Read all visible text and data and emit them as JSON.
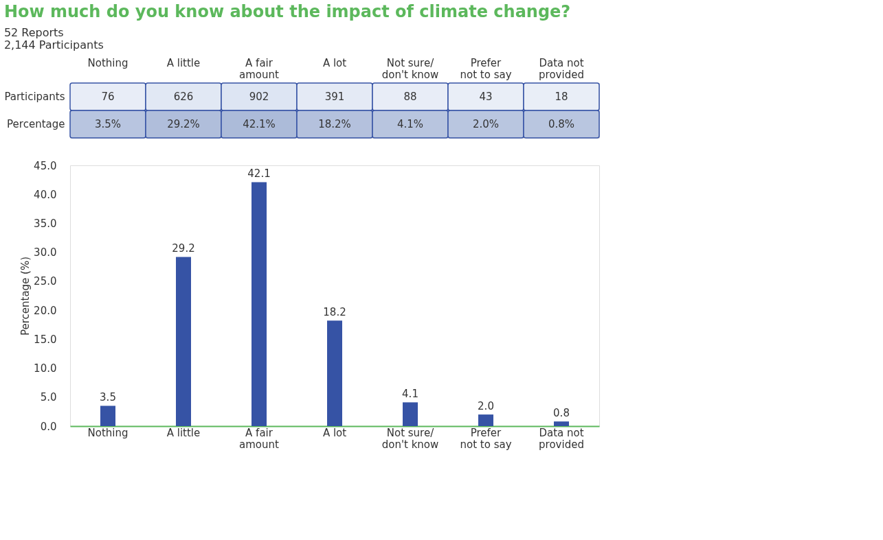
{
  "chart_data": [
    {
      "type": "heatmap",
      "title": "How much do you know about the impact of climate change?",
      "annotations": [
        "52 Reports",
        "2,144 Participants"
      ],
      "categories": [
        "Nothing",
        "A little",
        "A fair amount",
        "A lot",
        "Not sure/ don't know",
        "Prefer not to say",
        "Data not provided"
      ],
      "y_categories": [
        "Participants",
        "Percentage"
      ],
      "cells": [
        [
          76,
          626,
          902,
          391,
          88,
          43,
          18
        ],
        [
          3.5,
          29.2,
          42.1,
          18.2,
          4.1,
          2.0,
          0.8
        ]
      ],
      "cell_labels": [
        [
          "76",
          "626",
          "902",
          "391",
          "88",
          "43",
          "18"
        ],
        [
          "3.5%",
          "29.2%",
          "42.1%",
          "18.2%",
          "4.1%",
          "2.0%",
          "0.8%"
        ]
      ]
    },
    {
      "type": "bar",
      "ylabel": "Percentage (%)",
      "categories": [
        "Nothing",
        "A little",
        "A fair amount",
        "A lot",
        "Not sure/ don't know",
        "Prefer not to say",
        "Data not provided"
      ],
      "values": [
        3.5,
        29.2,
        42.1,
        18.2,
        4.1,
        2.0,
        0.8
      ],
      "color": "#3653a5",
      "ylim": [
        0,
        45
      ],
      "yticks": [
        {
          "value": 0,
          "label": "0.0"
        },
        {
          "value": 5,
          "label": "5.0"
        },
        {
          "value": 10,
          "label": "10.0"
        },
        {
          "value": 15,
          "label": "15.0"
        },
        {
          "value": 20,
          "label": "20.0"
        },
        {
          "value": 25,
          "label": "25.0"
        },
        {
          "value": 30,
          "label": "30.0"
        },
        {
          "value": 35,
          "label": "35.0"
        },
        {
          "value": 40,
          "label": "40.0"
        },
        {
          "value": 45,
          "label": "45.0"
        }
      ],
      "value_labels": [
        "3.5",
        "29.2",
        "42.1",
        "18.2",
        "4.1",
        "2.0",
        "0.8"
      ],
      "grid": false
    }
  ]
}
